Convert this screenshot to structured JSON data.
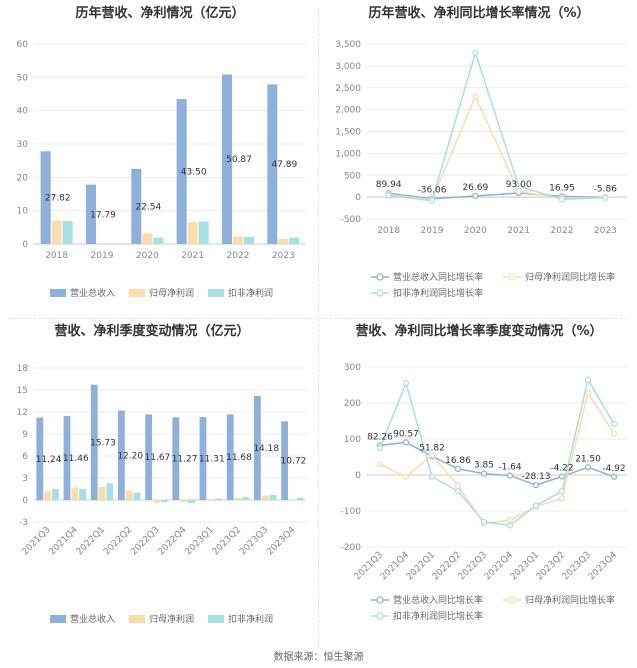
{
  "source": "数据来源：恒生聚源",
  "chart_data": [
    {
      "type": "bar",
      "title": "历年营收、净利情况（亿元）",
      "categories": [
        "2018",
        "2019",
        "2020",
        "2021",
        "2022",
        "2023"
      ],
      "ylim": [
        0,
        60
      ],
      "yticks": [
        0,
        10,
        20,
        30,
        40,
        50,
        60
      ],
      "series": [
        {
          "name": "营业总收入",
          "color": "#8eb0dc",
          "values": [
            27.82,
            17.79,
            22.54,
            43.5,
            50.87,
            47.89
          ],
          "labels": [
            "27.82",
            "17.79",
            "22.54",
            "43.50",
            "50.87",
            "47.89"
          ]
        },
        {
          "name": "归母净利润",
          "color": "#fbdcab",
          "values": [
            7.0,
            0,
            3.2,
            6.5,
            2.2,
            1.5
          ]
        },
        {
          "name": "扣非净利润",
          "color": "#a6e0e4",
          "values": [
            6.9,
            0,
            1.9,
            6.7,
            2.1,
            1.9
          ]
        }
      ]
    },
    {
      "type": "line",
      "title": "历年营收、净利同比增长率情况（%）",
      "categories": [
        "2018",
        "2019",
        "2020",
        "2021",
        "2022",
        "2023"
      ],
      "ylim": [
        -500,
        3500
      ],
      "yticks": [
        -500,
        0,
        500,
        1000,
        1500,
        2000,
        2500,
        3000,
        3500
      ],
      "ytick_labels": [
        "-500",
        "0",
        "500",
        "1,000",
        "1,500",
        "2,000",
        "2,500",
        "3,000",
        "3,500"
      ],
      "series": [
        {
          "name": "营业总收入同比增长率",
          "color": "#8eb0dc",
          "values": [
            89.94,
            -36.06,
            26.69,
            93.0,
            16.95,
            -5.86
          ],
          "labels": [
            "89.94",
            "-36.06",
            "26.69",
            "93.00",
            "16.95",
            "-5.86"
          ]
        },
        {
          "name": "归母净利润同比增长率",
          "color": "#fbdcab",
          "values": [
            55,
            -60,
            2300,
            130,
            -20,
            -20
          ]
        },
        {
          "name": "扣非净利润同比增长率",
          "color": "#a6e0e4",
          "values": [
            40,
            -80,
            3300,
            250,
            -50,
            -10
          ]
        }
      ]
    },
    {
      "type": "bar",
      "title": "营收、净利季度变动情况（亿元）",
      "categories": [
        "2021Q3",
        "2021Q4",
        "2022Q1",
        "2022Q2",
        "2022Q3",
        "2022Q4",
        "2023Q1",
        "2023Q2",
        "2023Q3",
        "2023Q4"
      ],
      "ylim": [
        -3,
        18
      ],
      "yticks": [
        -3,
        0,
        3,
        6,
        9,
        12,
        15,
        18
      ],
      "series": [
        {
          "name": "营业总收入",
          "color": "#8eb0dc",
          "values": [
            11.24,
            11.46,
            15.73,
            12.2,
            11.67,
            11.27,
            11.31,
            11.68,
            14.18,
            10.72
          ],
          "labels": [
            "11.24",
            "11.46",
            "15.73",
            "12.20",
            "11.67",
            "11.27",
            "11.31",
            "11.68",
            "14.18",
            "10.72"
          ]
        },
        {
          "name": "归母净利润",
          "color": "#fbdcab",
          "values": [
            1.2,
            1.7,
            1.8,
            1.3,
            -0.4,
            -0.3,
            0.1,
            0.3,
            0.6,
            -0.1
          ]
        },
        {
          "name": "扣非净利润",
          "color": "#a6e0e4",
          "values": [
            1.5,
            1.5,
            2.3,
            1.0,
            -0.3,
            -0.4,
            0.2,
            0.4,
            0.7,
            0.3
          ]
        }
      ]
    },
    {
      "type": "line",
      "title": "营收、净利同比增长率季度变动情况（%）",
      "categories": [
        "2021Q3",
        "2021Q4",
        "2022Q1",
        "2022Q2",
        "2022Q3",
        "2022Q4",
        "2023Q1",
        "2023Q2",
        "2023Q3",
        "2023Q4"
      ],
      "ylim": [
        -200,
        300
      ],
      "yticks": [
        -200,
        -100,
        0,
        100,
        200,
        300
      ],
      "ytick_labels": [
        "-200",
        "-100",
        "0",
        "100",
        "200",
        "300"
      ],
      "series": [
        {
          "name": "营业总收入同比增长率",
          "color": "#8eb0dc",
          "values": [
            82.26,
            90.57,
            51.82,
            16.86,
            3.85,
            -1.64,
            -28.13,
            -4.22,
            21.5,
            -4.92
          ],
          "labels": [
            "82.26",
            "90.57",
            "51.82",
            "16.86",
            "3.85",
            "-1.64",
            "-28.13",
            "-4.22",
            "21.50",
            "-4.92"
          ]
        },
        {
          "name": "归母净利润同比增长率",
          "color": "#fbdcab",
          "values": [
            30,
            -5,
            55,
            -30,
            -135,
            -125,
            -88,
            -65,
            228,
            115
          ]
        },
        {
          "name": "扣非净利润同比增长率",
          "color": "#a6e0e4",
          "values": [
            75,
            255,
            -5,
            -45,
            -130,
            -140,
            -85,
            -45,
            265,
            142
          ]
        }
      ]
    }
  ]
}
